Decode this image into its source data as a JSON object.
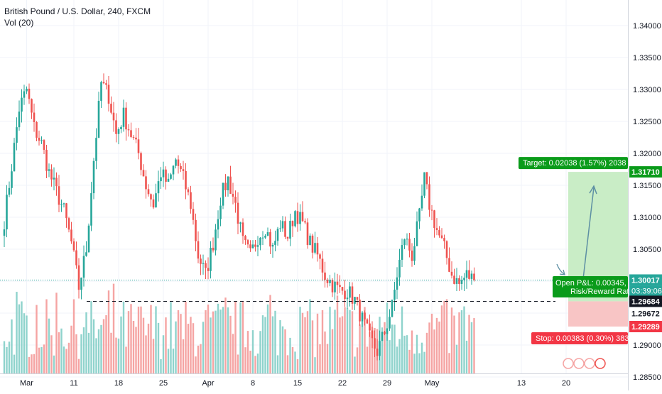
{
  "header": {
    "symbol_line": "British Pound / U.S. Dollar, 240, FXCM",
    "volume_line": "Vol (20)"
  },
  "colors": {
    "up": "#26a69a",
    "down": "#ef5350",
    "vol_up": "#8fd3cc",
    "vol_down": "#f5a4a3",
    "target_zone": "#c9edc6",
    "stop_zone": "#f8c5c5",
    "target_label": "#0a9b1a",
    "stop_label": "#f23645",
    "entry_label": "#0a9b1a",
    "price_line": "#26a69a"
  },
  "chart_data": {
    "type": "candlestick",
    "ylim": [
      1.2815,
      1.344
    ],
    "grid": true,
    "y_ticks": [
      "1.34000",
      "1.33500",
      "1.33000",
      "1.32500",
      "1.32000",
      "1.31500",
      "1.31000",
      "1.30500",
      "1.30000",
      "1.29500",
      "1.29000",
      "1.28500"
    ],
    "y_tick_values": [
      1.34,
      1.335,
      1.33,
      1.325,
      1.32,
      1.315,
      1.31,
      1.305,
      1.3,
      1.295,
      1.29,
      1.285
    ],
    "x_ticks": [
      "Mar",
      "11",
      "18",
      "25",
      "Apr",
      "8",
      "15",
      "22",
      "29",
      "May",
      "13",
      "20"
    ],
    "x_tick_bar_index": [
      9,
      28,
      46,
      64,
      82,
      100,
      118,
      136,
      154,
      172,
      208,
      226
    ],
    "anchor_points": [
      [
        0,
        1.3095
      ],
      [
        3,
        1.318
      ],
      [
        6,
        1.327
      ],
      [
        9,
        1.33
      ],
      [
        12,
        1.324
      ],
      [
        15,
        1.3215
      ],
      [
        18,
        1.317
      ],
      [
        21,
        1.314
      ],
      [
        24,
        1.311
      ],
      [
        27,
        1.306
      ],
      [
        30,
        1.299
      ],
      [
        33,
        1.305
      ],
      [
        36,
        1.319
      ],
      [
        39,
        1.331
      ],
      [
        42,
        1.329
      ],
      [
        45,
        1.323
      ],
      [
        48,
        1.326
      ],
      [
        51,
        1.323
      ],
      [
        54,
        1.32
      ],
      [
        57,
        1.315
      ],
      [
        60,
        1.312
      ],
      [
        63,
        1.317
      ],
      [
        66,
        1.315
      ],
      [
        69,
        1.319
      ],
      [
        72,
        1.316
      ],
      [
        75,
        1.312
      ],
      [
        78,
        1.304
      ],
      [
        81,
        1.301
      ],
      [
        84,
        1.306
      ],
      [
        87,
        1.313
      ],
      [
        90,
        1.316
      ],
      [
        93,
        1.312
      ],
      [
        96,
        1.306
      ],
      [
        99,
        1.304
      ],
      [
        102,
        1.307
      ],
      [
        105,
        1.3085
      ],
      [
        108,
        1.305
      ],
      [
        111,
        1.309
      ],
      [
        114,
        1.307
      ],
      [
        117,
        1.311
      ],
      [
        120,
        1.309
      ],
      [
        123,
        1.306
      ],
      [
        126,
        1.304
      ],
      [
        129,
        1.301
      ],
      [
        132,
        1.2995
      ],
      [
        135,
        1.2985
      ],
      [
        138,
        1.2985
      ],
      [
        141,
        1.297
      ],
      [
        144,
        1.294
      ],
      [
        147,
        1.291
      ],
      [
        150,
        1.289
      ],
      [
        153,
        1.292
      ],
      [
        156,
        1.296
      ],
      [
        158,
        1.301
      ],
      [
        161,
        1.307
      ],
      [
        164,
        1.304
      ],
      [
        167,
        1.31
      ],
      [
        169,
        1.316
      ],
      [
        171,
        1.312
      ],
      [
        174,
        1.308
      ],
      [
        177,
        1.305
      ],
      [
        180,
        1.301
      ],
      [
        183,
        1.2995
      ],
      [
        186,
        1.301
      ],
      [
        189,
        1.3002
      ]
    ],
    "last_price": 1.30017,
    "countdown": "03:39:06",
    "support_level": 1.29684,
    "position": {
      "type": "long",
      "entry": 1.29684,
      "target": 1.3171,
      "stop": 1.29289,
      "mid_level": 1.29672,
      "target_text": "Target: 0.02038 (1.57%) 2038",
      "stop_text": "Stop: 0.00383 (0.30%) 383",
      "pnl_text": "Open P&L: 0.00345,",
      "rr_text": "Risk/Reward Rat"
    },
    "axis_labels": {
      "last_price": "1.30017",
      "entry": "1.29684",
      "mid": "1.29672",
      "target": "1.31710",
      "stop": "1.29289"
    }
  }
}
